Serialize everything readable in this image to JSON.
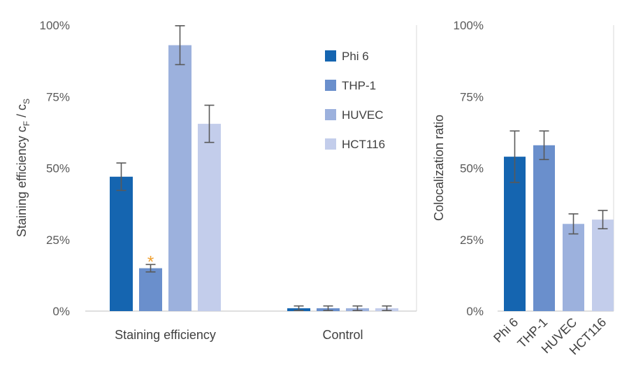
{
  "chart_data": [
    {
      "type": "bar",
      "ylabel_main": "Staining efficiency c",
      "ylabel_sub1": "F",
      "ylabel_mid": " / c",
      "ylabel_sub2": "S",
      "ylim": [
        0,
        100
      ],
      "yticks": [
        "0%",
        "25%",
        "50%",
        "75%",
        "100%"
      ],
      "ytick_values": [
        0,
        25,
        50,
        75,
        100
      ],
      "categories": [
        "Staining efficiency",
        "Control"
      ],
      "legend_placement": "top-right",
      "series": [
        {
          "name": "Phi 6",
          "color": "#1565b0",
          "values": [
            47,
            1
          ],
          "errors": [
            4.8,
            0.8
          ]
        },
        {
          "name": "THP-1",
          "color": "#6a8fcc",
          "values": [
            15,
            1
          ],
          "errors": [
            1.3,
            0.8
          ]
        },
        {
          "name": "HUVEC",
          "color": "#9cb1dd",
          "values": [
            93,
            1
          ],
          "errors": [
            6.8,
            0.8
          ]
        },
        {
          "name": "HCT116",
          "color": "#c3cdeb",
          "values": [
            65.5,
            1
          ],
          "errors": [
            6.5,
            0.8
          ]
        }
      ],
      "annotation": {
        "text": "*",
        "series": "THP-1",
        "category": "Staining efficiency",
        "color": "#f0a030"
      }
    },
    {
      "type": "bar",
      "ylabel": "Colocalization ratio",
      "ylim": [
        0,
        100
      ],
      "yticks": [
        "0%",
        "25%",
        "50%",
        "75%",
        "100%"
      ],
      "ytick_values": [
        0,
        25,
        50,
        75,
        100
      ],
      "categories": [
        "Phi 6",
        "THP-1",
        "HUVEC",
        "HCT116"
      ],
      "values": [
        54,
        58,
        30.5,
        32
      ],
      "errors": [
        9,
        5,
        3.5,
        3.2
      ],
      "colors": [
        "#1565b0",
        "#6a8fcc",
        "#9cb1dd",
        "#c3cdeb"
      ]
    }
  ]
}
